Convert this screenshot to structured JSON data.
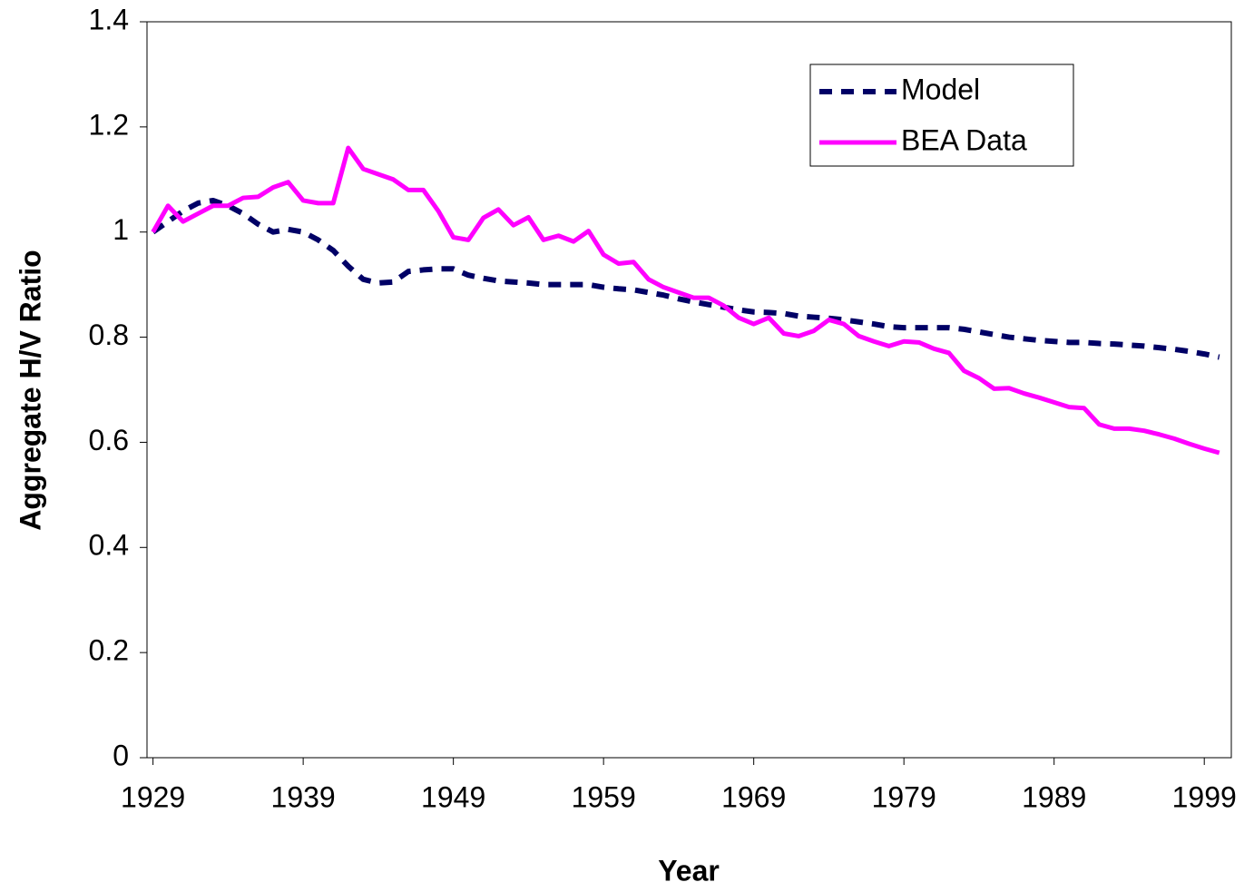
{
  "chart_data": {
    "type": "line",
    "x_label": "Year",
    "y_label": "Aggregate H/V Ratio",
    "x": [
      1929,
      1930,
      1931,
      1932,
      1933,
      1934,
      1935,
      1936,
      1937,
      1938,
      1939,
      1940,
      1941,
      1942,
      1943,
      1944,
      1945,
      1946,
      1947,
      1948,
      1949,
      1950,
      1951,
      1952,
      1953,
      1954,
      1955,
      1956,
      1957,
      1958,
      1959,
      1960,
      1961,
      1962,
      1963,
      1964,
      1965,
      1966,
      1967,
      1968,
      1969,
      1970,
      1971,
      1972,
      1973,
      1974,
      1975,
      1976,
      1977,
      1978,
      1979,
      1980,
      1981,
      1982,
      1983,
      1984,
      1985,
      1986,
      1987,
      1988,
      1989,
      1990,
      1991,
      1992,
      1993,
      1994,
      1995,
      1996,
      1997,
      1998,
      1999,
      2000
    ],
    "series": [
      {
        "name": "Model",
        "color": "#000066",
        "dashed": true,
        "values": [
          1.0,
          1.02,
          1.04,
          1.055,
          1.06,
          1.05,
          1.035,
          1.015,
          1.0,
          1.005,
          1.0,
          0.985,
          0.965,
          0.935,
          0.91,
          0.903,
          0.905,
          0.925,
          0.928,
          0.93,
          0.93,
          0.918,
          0.912,
          0.907,
          0.905,
          0.903,
          0.9,
          0.9,
          0.9,
          0.9,
          0.895,
          0.892,
          0.89,
          0.885,
          0.88,
          0.873,
          0.867,
          0.862,
          0.857,
          0.852,
          0.848,
          0.847,
          0.845,
          0.84,
          0.838,
          0.836,
          0.833,
          0.829,
          0.825,
          0.82,
          0.818,
          0.818,
          0.818,
          0.818,
          0.815,
          0.81,
          0.805,
          0.8,
          0.797,
          0.794,
          0.792,
          0.79,
          0.79,
          0.788,
          0.787,
          0.785,
          0.783,
          0.78,
          0.777,
          0.773,
          0.768,
          0.762
        ]
      },
      {
        "name": "BEA Data",
        "color": "#ff00ff",
        "dashed": false,
        "values": [
          1.0,
          1.05,
          1.02,
          1.035,
          1.05,
          1.05,
          1.065,
          1.067,
          1.085,
          1.095,
          1.06,
          1.055,
          1.055,
          1.16,
          1.12,
          1.11,
          1.1,
          1.08,
          1.08,
          1.04,
          0.99,
          0.985,
          1.027,
          1.043,
          1.013,
          1.028,
          0.985,
          0.993,
          0.982,
          1.002,
          0.957,
          0.94,
          0.943,
          0.91,
          0.895,
          0.885,
          0.875,
          0.875,
          0.86,
          0.837,
          0.825,
          0.837,
          0.807,
          0.802,
          0.812,
          0.833,
          0.825,
          0.802,
          0.792,
          0.783,
          0.792,
          0.79,
          0.778,
          0.77,
          0.736,
          0.722,
          0.702,
          0.703,
          0.693,
          0.685,
          0.676,
          0.667,
          0.665,
          0.634,
          0.626,
          0.626,
          0.622,
          0.615,
          0.607,
          0.597,
          0.588,
          0.58
        ]
      }
    ],
    "xlim": [
      1928.6,
      2000.8
    ],
    "xticks": [
      1929,
      1939,
      1949,
      1959,
      1969,
      1979,
      1989,
      1999
    ],
    "ylim": [
      0,
      1.4
    ],
    "yticks": [
      0,
      0.2,
      0.4,
      0.6,
      0.8,
      1,
      1.2,
      1.4
    ],
    "legend": "upper right",
    "grid": false
  }
}
